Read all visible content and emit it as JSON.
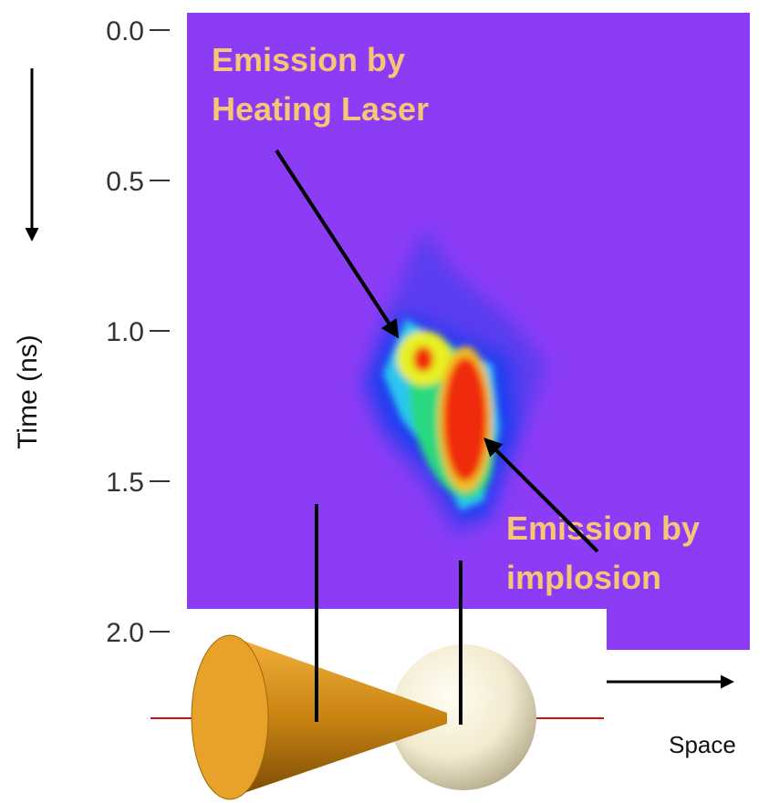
{
  "axis": {
    "label": "Time (ns)",
    "ticks": [
      "0.0",
      "0.5",
      "1.0",
      "1.5",
      "2.0"
    ]
  },
  "annotations": {
    "heating": [
      "Emission by",
      "Heating Laser"
    ],
    "implosion": [
      "Emission by",
      "implosion"
    ]
  },
  "space_label": "Space"
}
